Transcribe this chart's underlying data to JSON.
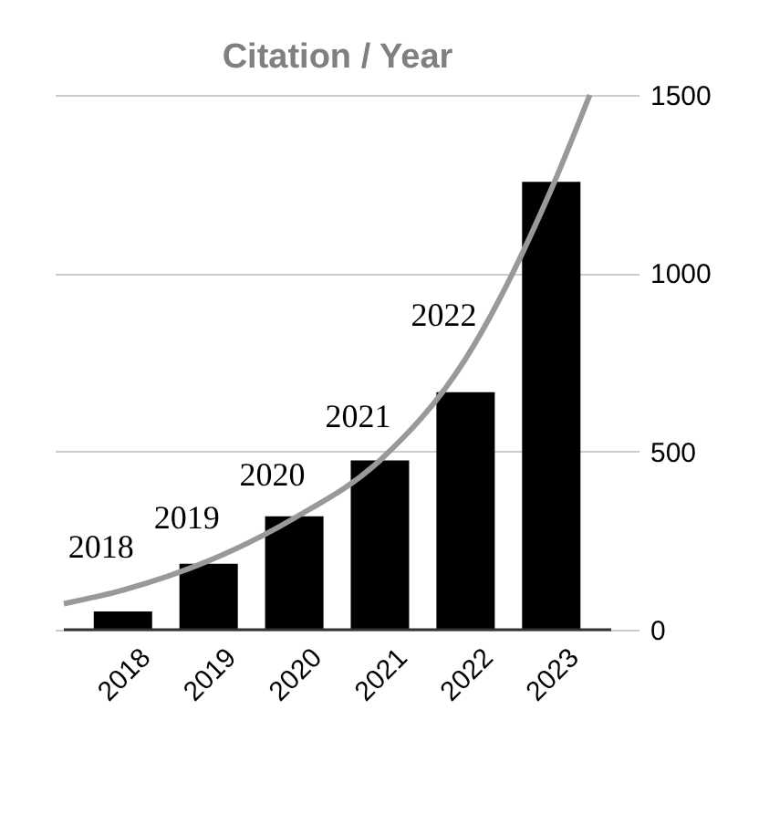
{
  "chart_data": {
    "type": "bar",
    "title": "Citation / Year",
    "x": [
      2018,
      2019,
      2020,
      2021,
      2022,
      2023
    ],
    "xlim": [
      2017.31,
      2023.7
    ],
    "xticks": [
      2018,
      2019,
      2020,
      2021,
      2022,
      2023
    ],
    "ylim": [
      0,
      1500
    ],
    "yticks": [
      0,
      500,
      1000,
      1500
    ],
    "grid": "y",
    "series": [
      {
        "type": "bar",
        "color": "#000000",
        "values": [
          51,
          185,
          318,
          475,
          666,
          1256
        ]
      },
      {
        "type": "line",
        "color": "#999999",
        "x": [
          2017.31,
          2018,
          2019,
          2020,
          2021,
          2022,
          2023,
          2023.45
        ],
        "values": [
          73,
          111,
          193,
          313,
          475,
          760,
          1235,
          1500
        ]
      }
    ],
    "annotations": [
      "2018",
      "2019",
      "2020",
      "2021",
      "2022"
    ]
  }
}
